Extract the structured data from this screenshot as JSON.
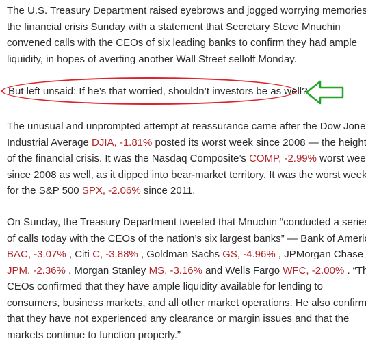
{
  "article": {
    "p1": {
      "l1": "The U.S. Treasury Department raised eyebrows and jogged worrying memories of",
      "l2": "the financial crisis Sunday with a statement that Secretary Steve Mnuchin",
      "l3": "convened calls with the CEOs of six leading banks to confirm they had ample",
      "l4": "liquidity, in hopes of averting another Wall Street selloff Monday."
    },
    "p2": {
      "l1": "But left unsaid: If he’s that worried, shouldn’t investors be as well?"
    },
    "p3": {
      "l1a": "The unusual and unprompted attempt at reassurance came after the Dow Jones",
      "l2a": "Industrial Average ",
      "l2t": "DJIA, -1.81%",
      "l2b": " posted its worst week since 2008 — the height",
      "l3a": "of the financial crisis. It was the Nasdaq Composite’s ",
      "l3t": "COMP, -2.99%",
      "l3b": " worst week",
      "l4a": "since 2008 as well, as it dipped into bear-market territory. It was the worst week",
      "l5a": "for the S&P 500 ",
      "l5t": "SPX, -2.06%",
      "l5b": " since 2011."
    },
    "p4": {
      "l1a": "On Sunday, the Treasury Department tweeted that Mnuchin “conducted a series",
      "l2a": "of calls today with the CEOs of the nation’s six largest banks” — Bank of America",
      "l3t1": "BAC, -3.07%",
      "l3a": " , Citi ",
      "l3t2": "C, -3.88%",
      "l3b": " , Goldman Sachs ",
      "l3t3": "GS, -4.96%",
      "l3c": " , JPMorgan Chase",
      "l4t1": "JPM, -2.36%",
      "l4a": " , Morgan Stanley ",
      "l4t2": "MS, -3.16%",
      "l4b": " and Wells Fargo ",
      "l4t3": "WFC, -2.00%",
      "l4c": " . “The",
      "l5a": "CEOs confirmed that they have ample liquidity available for lending to",
      "l6a": "consumers, business markets, and all other market operations. He also confirmed",
      "l7a": "that they have not experienced any clearance or margin issues and that the",
      "l8a": "markets continue to function properly.”"
    }
  },
  "annotation": {
    "oval_color": "#e0202a",
    "arrow_color": "#22a52a",
    "arrow_icon": "left-arrow-outline-icon"
  },
  "ticker_color": "#b0262a"
}
